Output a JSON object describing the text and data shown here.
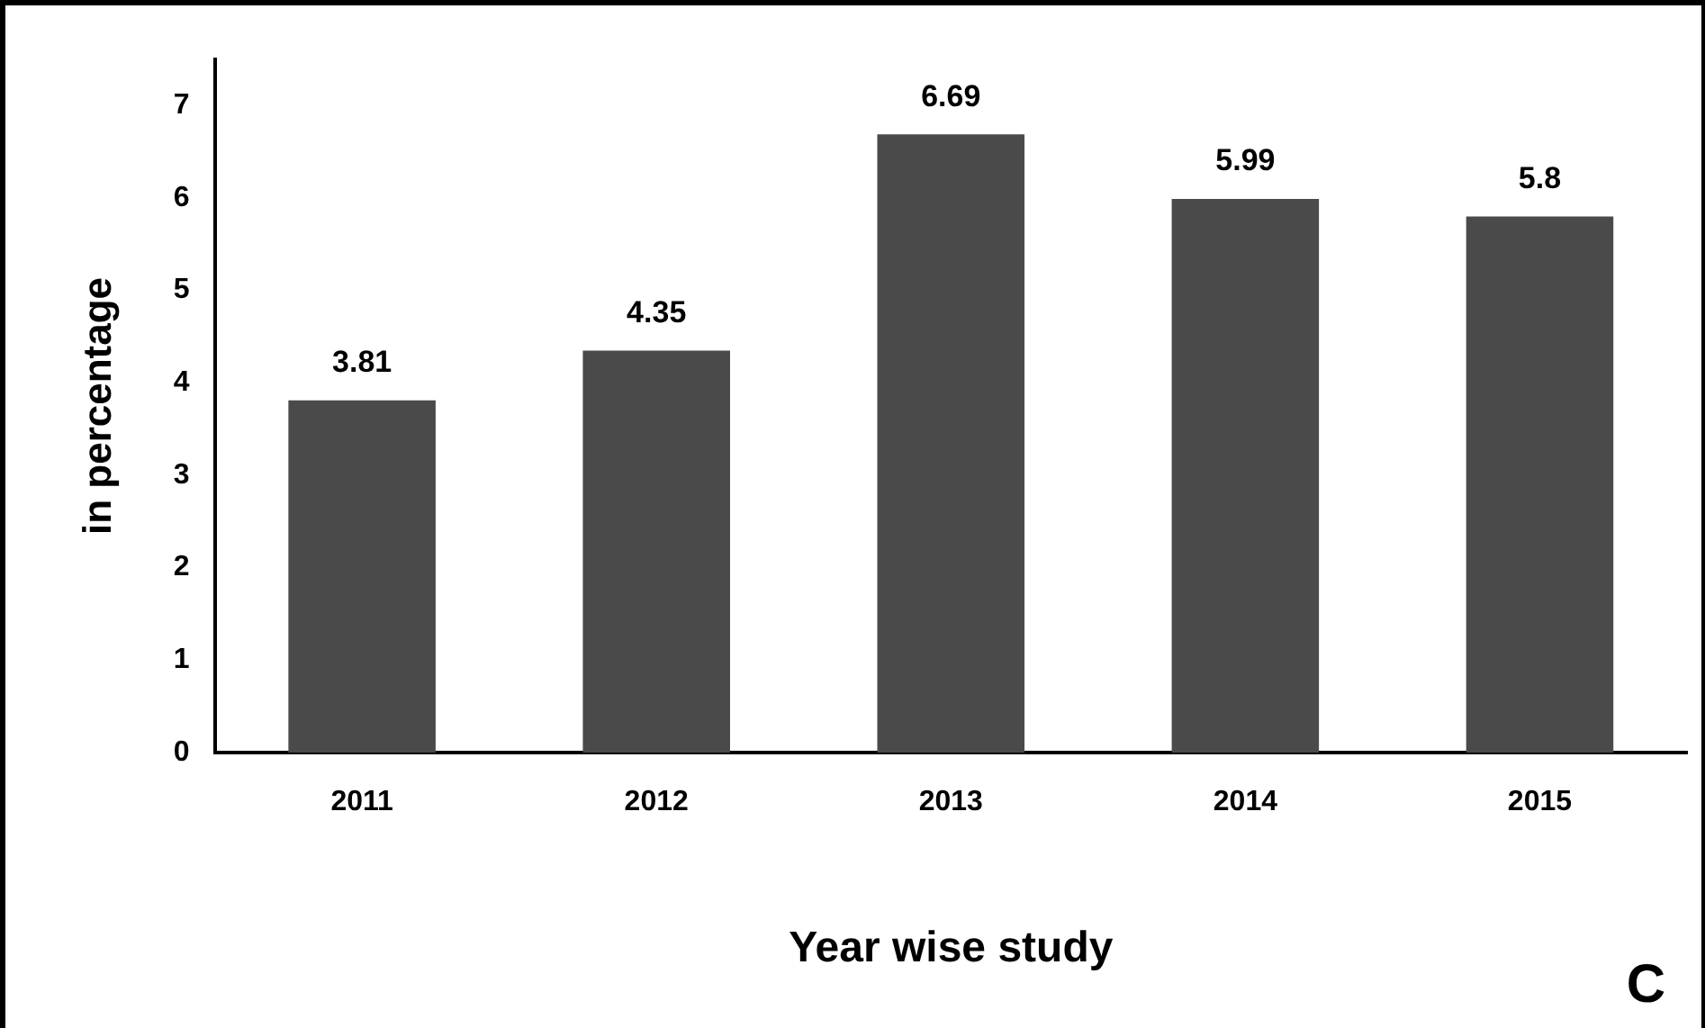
{
  "chart_data": {
    "type": "bar",
    "xlabel": "Year wise study",
    "ylabel": "in percentage",
    "categories": [
      "2011",
      "2012",
      "2013",
      "2014",
      "2015"
    ],
    "values": [
      3.81,
      4.35,
      6.69,
      5.99,
      5.8
    ],
    "color": "#4a4a4a",
    "ylim": [
      0,
      7.5
    ],
    "yticks": [
      0,
      1,
      2,
      3,
      4,
      5,
      6,
      7
    ],
    "grid": false,
    "legend": false,
    "data_labels": true,
    "annotations": [
      "C"
    ]
  }
}
